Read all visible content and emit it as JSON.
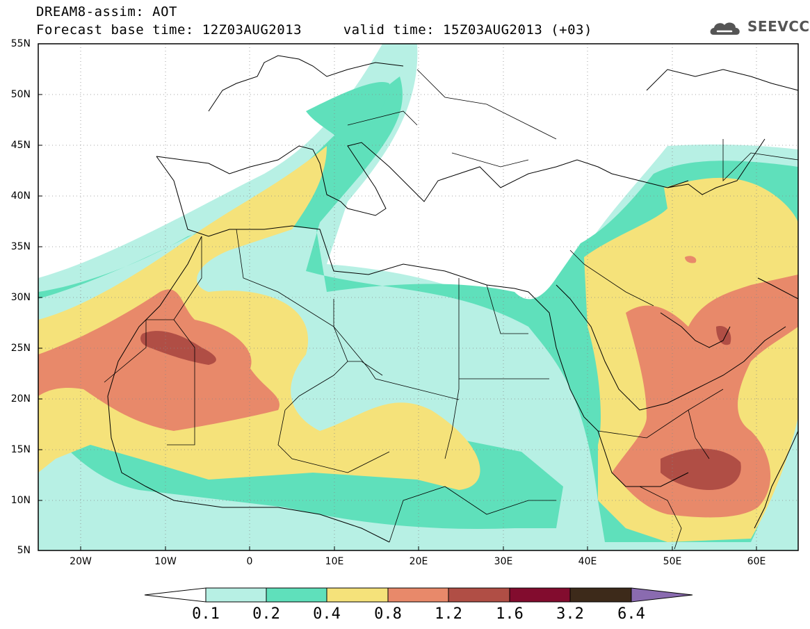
{
  "header": {
    "line1": "DREAM8-assim: AOT",
    "line2": "Forecast base time: 12Z03AUG2013     valid time: 15Z03AUG2013 (+03)",
    "logo_text": "SEEVCCC",
    "logo_icon": "cloud-icon"
  },
  "map": {
    "lat_labels": [
      "55N",
      "50N",
      "45N",
      "40N",
      "35N",
      "30N",
      "25N",
      "20N",
      "15N",
      "10N",
      "5N"
    ],
    "lon_labels": [
      "20W",
      "10W",
      "0",
      "10E",
      "20E",
      "30E",
      "40E",
      "50E",
      "60E"
    ],
    "lon_range": [
      -25,
      65
    ],
    "lat_range": [
      5,
      55
    ]
  },
  "colorbar": {
    "labels": [
      "0.1",
      "0.2",
      "0.4",
      "0.8",
      "1.2",
      "1.6",
      "3.2",
      "6.4"
    ],
    "colors": [
      "#ffffff",
      "#b7f0e4",
      "#5fe0bb",
      "#f5e27a",
      "#e8896a",
      "#b04e45",
      "#820c2e",
      "#3d2a1a",
      "#8a6bb0"
    ]
  }
}
